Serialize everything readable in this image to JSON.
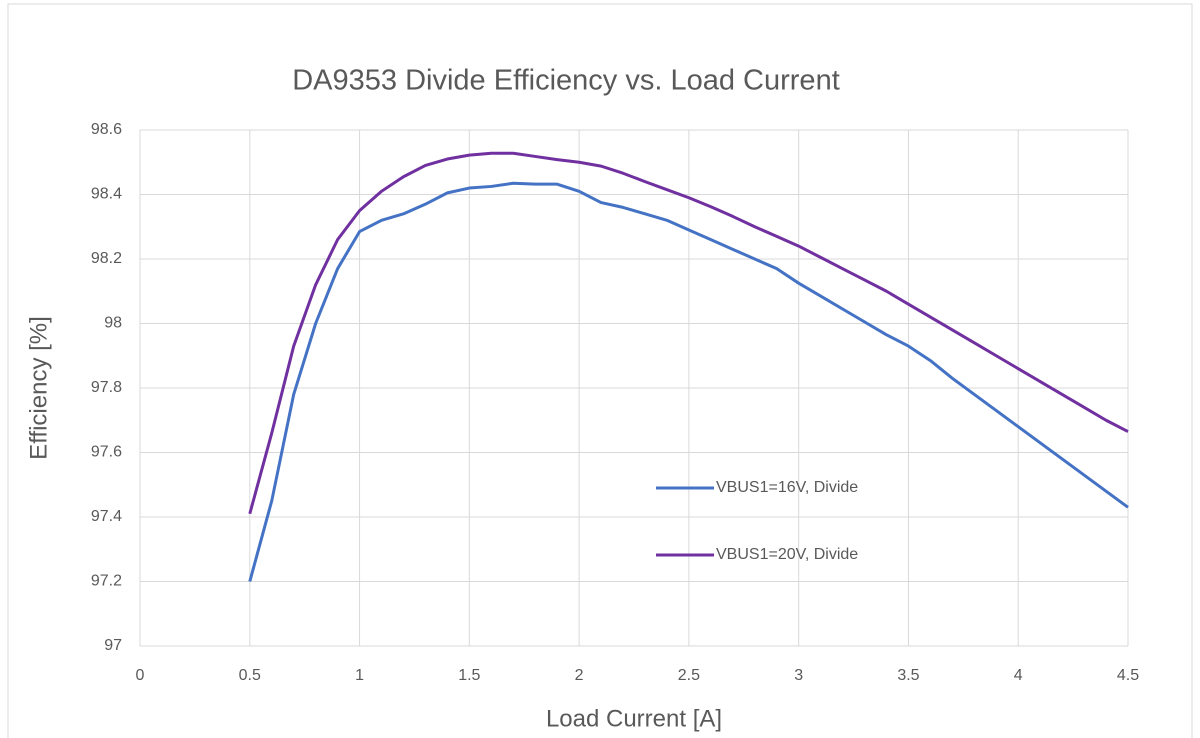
{
  "chart_data": {
    "type": "line",
    "title": "DA9353 Divide Efficiency vs. Load Current",
    "x_label": "Load Current [A]",
    "y_label": "Efficiency [%]",
    "x": [
      0.5,
      0.6,
      0.7,
      0.8,
      0.9,
      1.0,
      1.1,
      1.2,
      1.3,
      1.4,
      1.5,
      1.6,
      1.7,
      1.8,
      1.9,
      2.0,
      2.1,
      2.2,
      2.3,
      2.4,
      2.5,
      2.6,
      2.7,
      2.8,
      2.9,
      3.0,
      3.1,
      3.2,
      3.3,
      3.4,
      3.5,
      3.6,
      3.7,
      3.8,
      3.9,
      4.0,
      4.1,
      4.2,
      4.3,
      4.4,
      4.5
    ],
    "series": [
      {
        "name": "VBUS1=16V, Divide",
        "color": "#4472c4",
        "values": [
          97.2,
          97.45,
          97.78,
          98.0,
          98.17,
          98.285,
          98.32,
          98.34,
          98.37,
          98.405,
          98.42,
          98.425,
          98.435,
          98.432,
          98.432,
          98.41,
          98.375,
          98.36,
          98.34,
          98.32,
          98.29,
          98.26,
          98.23,
          98.2,
          98.17,
          98.125,
          98.085,
          98.045,
          98.005,
          97.965,
          97.93,
          97.885,
          97.83,
          97.78,
          97.73,
          97.68,
          97.63,
          97.58,
          97.53,
          97.48,
          97.43
        ]
      },
      {
        "name": "VBUS1=20V, Divide",
        "color": "#7030a0",
        "values": [
          97.41,
          97.66,
          97.93,
          98.12,
          98.26,
          98.35,
          98.41,
          98.455,
          98.49,
          98.51,
          98.522,
          98.528,
          98.528,
          98.518,
          98.508,
          98.5,
          98.488,
          98.466,
          98.44,
          98.415,
          98.39,
          98.362,
          98.332,
          98.3,
          98.27,
          98.24,
          98.205,
          98.17,
          98.135,
          98.1,
          98.06,
          98.02,
          97.98,
          97.94,
          97.9,
          97.86,
          97.82,
          97.78,
          97.74,
          97.7,
          97.665
        ]
      }
    ],
    "xlim": [
      0,
      4.5
    ],
    "xticks": [
      0,
      0.5,
      1,
      1.5,
      2,
      2.5,
      3,
      3.5,
      4,
      4.5
    ],
    "ylim": [
      97,
      98.6
    ],
    "yticks": [
      97,
      97.2,
      97.4,
      97.6,
      97.8,
      98,
      98.2,
      98.4,
      98.6
    ],
    "grid": true,
    "legend": "inside-right"
  }
}
